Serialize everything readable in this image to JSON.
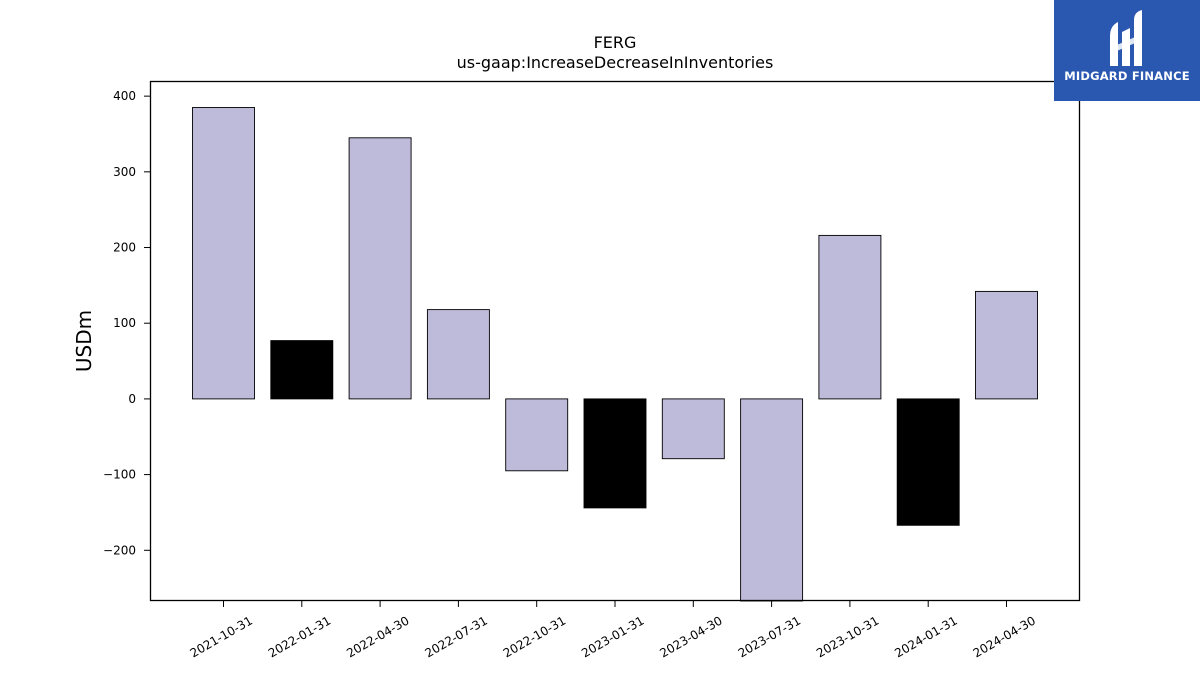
{
  "chart_data": {
    "type": "bar",
    "title": "FERG",
    "subtitle": "us-gaap:IncreaseDecreaseInInventories",
    "xlabel": "",
    "ylabel": "USDm",
    "ylim": [
      -267,
      420
    ],
    "yticks": [
      -200,
      -100,
      0,
      100,
      200,
      300,
      400
    ],
    "ytick_labels": [
      "−200",
      "−100",
      "0",
      "100",
      "200",
      "300",
      "400"
    ],
    "categories": [
      "2021-10-31",
      "2022-01-31",
      "2022-04-30",
      "2022-07-31",
      "2022-10-31",
      "2023-01-31",
      "2023-04-30",
      "2023-07-31",
      "2023-10-31",
      "2024-01-31",
      "2024-04-30"
    ],
    "values": [
      385,
      77,
      345,
      118,
      -95,
      -144,
      -79,
      -270,
      216,
      -167,
      142
    ],
    "bar_colors": [
      "#bebad9",
      "#000000",
      "#bebad9",
      "#bebad9",
      "#bebad9",
      "#000000",
      "#bebad9",
      "#bebad9",
      "#bebad9",
      "#000000",
      "#bebad9"
    ],
    "grid": false,
    "legend": "none"
  },
  "logo": {
    "text": "MIDGARD FINANCE",
    "color": "#2a57b0"
  }
}
